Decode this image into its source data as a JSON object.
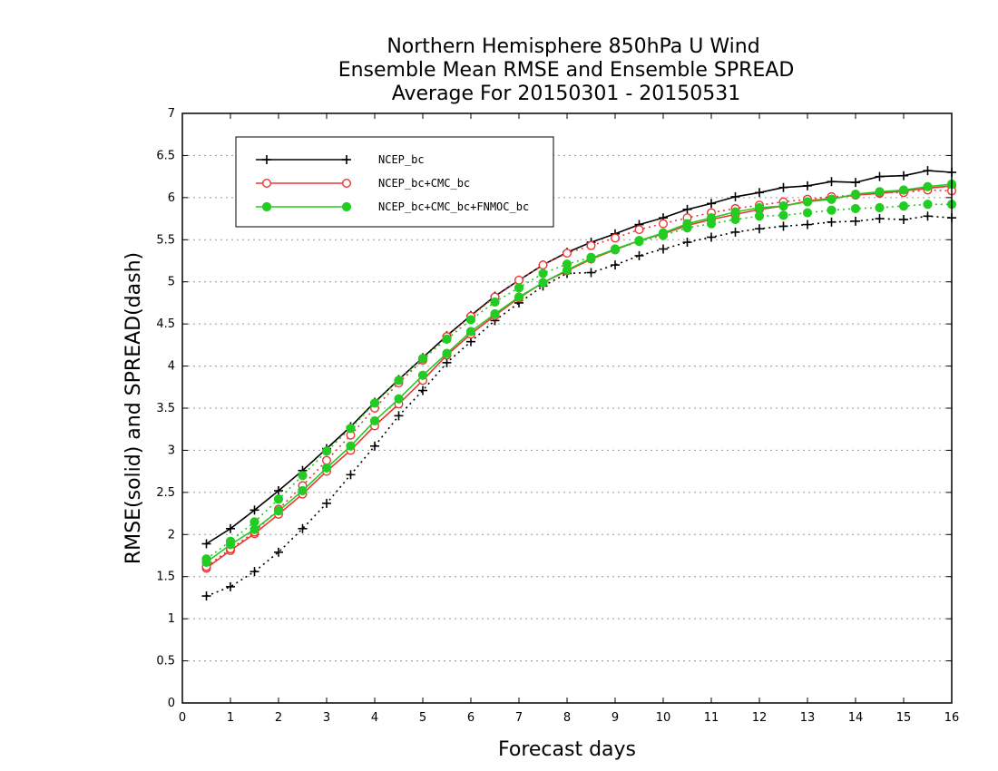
{
  "chart_data": {
    "type": "line",
    "title": [
      "Northern Hemisphere 850hPa U Wind",
      "Ensemble Mean RMSE and Ensemble SPREAD",
      "Average For 20150301 - 20150531"
    ],
    "xlabel": "Forecast days",
    "ylabel": "RMSE(solid) and SPREAD(dash)",
    "xlim": [
      0,
      16
    ],
    "ylim": [
      0,
      7
    ],
    "xticks": [
      0,
      1,
      2,
      3,
      4,
      5,
      6,
      7,
      8,
      9,
      10,
      11,
      12,
      13,
      14,
      15,
      16
    ],
    "yticks": [
      0,
      0.5,
      1,
      1.5,
      2,
      2.5,
      3,
      3.5,
      4,
      4.5,
      5,
      5.5,
      6,
      6.5,
      7
    ],
    "grid": "horizontal-dotted",
    "legend_position": "top-left",
    "x": [
      0.5,
      1,
      1.5,
      2,
      2.5,
      3,
      3.5,
      4,
      4.5,
      5,
      5.5,
      6,
      6.5,
      7,
      7.5,
      8,
      8.5,
      9,
      9.5,
      10,
      10.5,
      11,
      11.5,
      12,
      12.5,
      13,
      13.5,
      14,
      14.5,
      15,
      15.5,
      16
    ],
    "series": [
      {
        "name": "NCEP_bc",
        "color": "#000000",
        "marker": "plus",
        "line": "solid",
        "values": [
          1.89,
          2.07,
          2.29,
          2.52,
          2.76,
          3.02,
          3.28,
          3.57,
          3.84,
          4.1,
          4.36,
          4.6,
          4.83,
          5.02,
          5.2,
          5.35,
          5.47,
          5.57,
          5.68,
          5.76,
          5.86,
          5.93,
          6.01,
          6.06,
          6.12,
          6.14,
          6.19,
          6.18,
          6.25,
          6.26,
          6.32,
          6.3
        ]
      },
      {
        "name": "",
        "color": "#000000",
        "marker": "plus",
        "line": "dotted",
        "values": [
          1.27,
          1.38,
          1.56,
          1.79,
          2.07,
          2.37,
          2.71,
          3.05,
          3.41,
          3.71,
          4.04,
          4.29,
          4.54,
          4.75,
          4.95,
          5.1,
          5.11,
          5.2,
          5.31,
          5.39,
          5.47,
          5.53,
          5.59,
          5.63,
          5.66,
          5.68,
          5.71,
          5.72,
          5.75,
          5.74,
          5.78,
          5.76
        ]
      },
      {
        "name": "NCEP_bc+CMC_bc",
        "color": "#ee3333",
        "marker": "open-circle",
        "line": "solid",
        "values": [
          1.6,
          1.81,
          2.01,
          2.24,
          2.48,
          2.75,
          3.0,
          3.29,
          3.55,
          3.83,
          4.13,
          4.38,
          4.6,
          4.81,
          4.99,
          5.13,
          5.27,
          5.38,
          5.49,
          5.57,
          5.67,
          5.74,
          5.8,
          5.86,
          5.9,
          5.96,
          5.99,
          6.03,
          6.05,
          6.08,
          6.11,
          6.14
        ]
      },
      {
        "name": "",
        "color": "#ee3333",
        "marker": "open-circle",
        "line": "dotted",
        "values": [
          1.62,
          1.83,
          2.03,
          2.3,
          2.58,
          2.88,
          3.18,
          3.5,
          3.8,
          4.07,
          4.35,
          4.59,
          4.82,
          5.02,
          5.2,
          5.34,
          5.43,
          5.52,
          5.62,
          5.69,
          5.76,
          5.82,
          5.87,
          5.91,
          5.95,
          5.98,
          6.01,
          6.03,
          6.06,
          6.06,
          6.09,
          6.08
        ]
      },
      {
        "name": "NCEP_bc+CMC_bc+FNMOC_bc",
        "color": "#22cc22",
        "marker": "filled-circle",
        "line": "solid",
        "values": [
          1.67,
          1.88,
          2.06,
          2.28,
          2.52,
          2.79,
          3.05,
          3.35,
          3.61,
          3.89,
          4.15,
          4.41,
          4.62,
          4.82,
          4.99,
          5.14,
          5.28,
          5.39,
          5.49,
          5.58,
          5.69,
          5.76,
          5.83,
          5.88,
          5.9,
          5.95,
          5.98,
          6.04,
          6.07,
          6.09,
          6.13,
          6.16
        ]
      },
      {
        "name": "",
        "color": "#22cc22",
        "marker": "filled-circle",
        "line": "dotted",
        "values": [
          1.71,
          1.92,
          2.15,
          2.42,
          2.7,
          2.99,
          3.26,
          3.56,
          3.83,
          4.09,
          4.32,
          4.55,
          4.76,
          4.93,
          5.1,
          5.21,
          5.29,
          5.38,
          5.48,
          5.55,
          5.64,
          5.69,
          5.74,
          5.78,
          5.79,
          5.82,
          5.85,
          5.87,
          5.88,
          5.9,
          5.92,
          5.92
        ]
      }
    ]
  }
}
